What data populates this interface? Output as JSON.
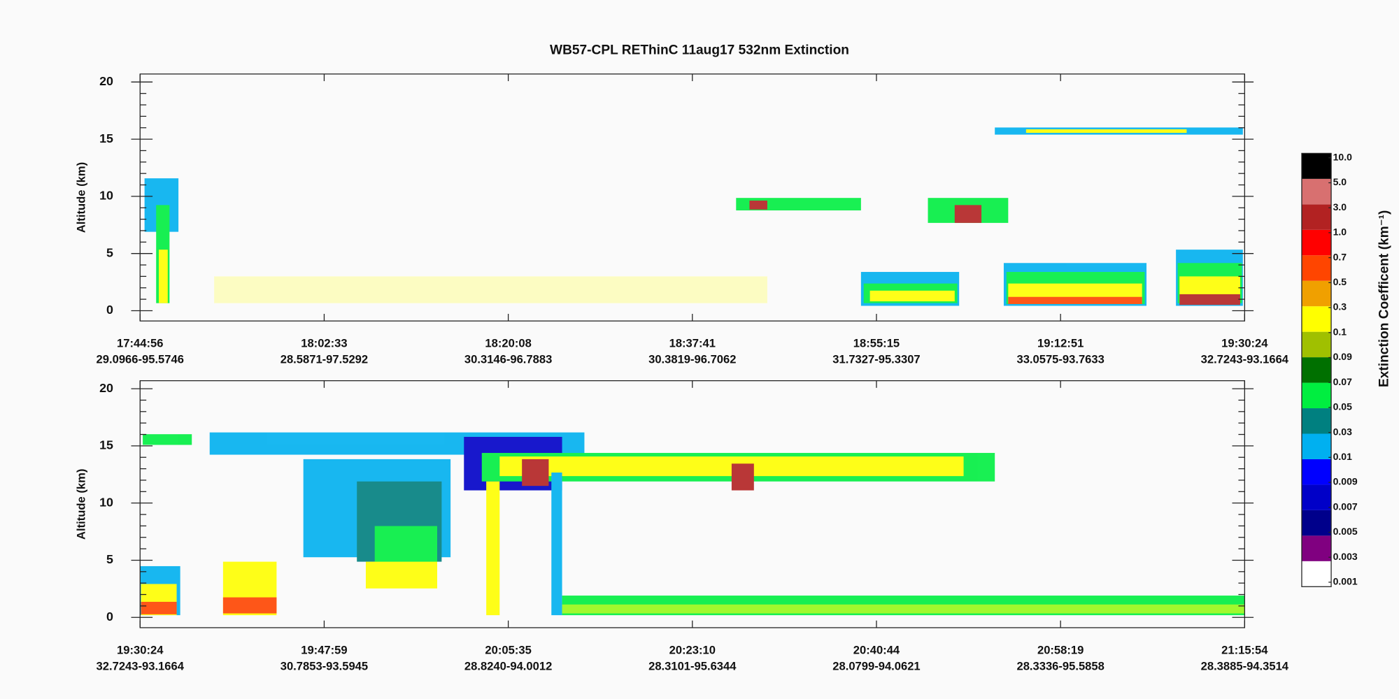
{
  "title": "WB57-CPL  REThinC  11aug17  532nm Extinction",
  "chart_data": [
    {
      "type": "heatmap",
      "y_label": "Altitude (km)",
      "ylim": [
        -0.9,
        20.7
      ],
      "yticks": [
        0,
        5,
        10,
        15,
        20
      ],
      "x": [
        "17:44:56",
        "18:02:33",
        "18:20:08",
        "18:37:41",
        "18:55:15",
        "19:12:51",
        "19:30:24"
      ],
      "locations": [
        "29.0966-95.5746",
        "28.5871-97.5292",
        "30.3146-96.7883",
        "30.3819-96.7062",
        "31.7327-95.3307",
        "33.0575-93.7633",
        "32.7243-93.1664"
      ]
    },
    {
      "type": "heatmap",
      "y_label": "Altitude (km)",
      "ylim": [
        -0.9,
        20.7
      ],
      "yticks": [
        0,
        5,
        10,
        15,
        20
      ],
      "x": [
        "19:30:24",
        "19:47:59",
        "20:05:35",
        "20:23:10",
        "20:40:44",
        "20:58:19",
        "21:15:54"
      ],
      "locations": [
        "32.7243-93.1664",
        "30.7853-93.5945",
        "28.8240-94.0012",
        "28.3101-95.6344",
        "28.0799-94.0621",
        "28.3336-95.5858",
        "28.3885-94.3514"
      ]
    }
  ],
  "colorbar": {
    "title": "Extinction Coefficent (km⁻¹)",
    "ticks": [
      {
        "value": 0.001,
        "label": "0.001"
      },
      0.003,
      0.005,
      0.007,
      0.009,
      0.01,
      0.03,
      0.05,
      0.07,
      0.09,
      0.1,
      0.3,
      0.5,
      0.7,
      {
        "value": 1,
        "label": "1.0"
      },
      {
        "value": 3,
        "label": "3.0"
      },
      {
        "value": 5,
        "label": "5.0"
      },
      {
        "value": 10,
        "label": "10.0"
      }
    ],
    "colors": [
      "#ffffff",
      "#800080",
      "#00008b",
      "#0000c8",
      "#0000ff",
      "#00b0f0",
      "#008080",
      "#00ee40",
      "#007000",
      "#a0c000",
      "#ffff00",
      "#f0a000",
      "#ff4500",
      "#ff0000",
      "#b22222",
      "#d87070",
      "#000000"
    ]
  }
}
